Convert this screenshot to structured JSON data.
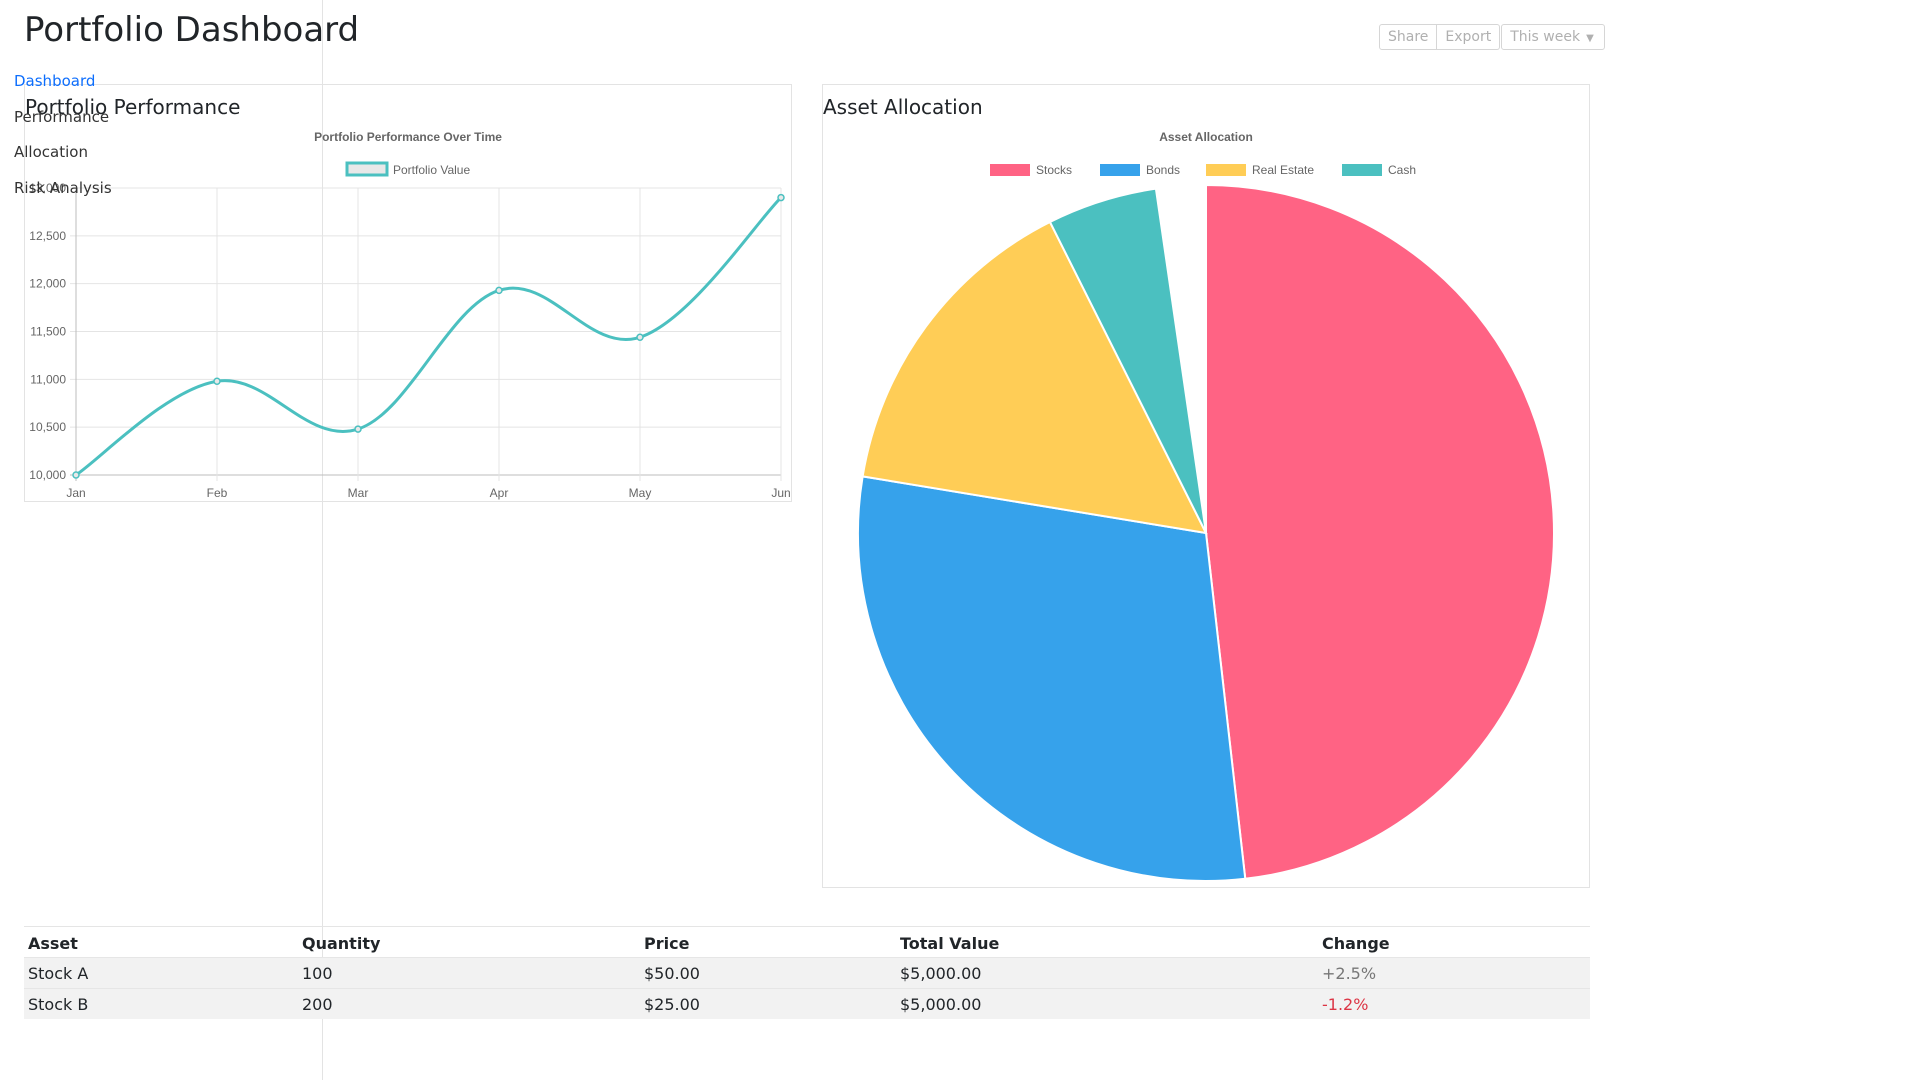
{
  "header": {
    "title": "Portfolio Dashboard",
    "share_label": "Share",
    "export_label": "Export",
    "period_label": "This week"
  },
  "sidebar": {
    "items": [
      {
        "label": "Dashboard",
        "active": true
      },
      {
        "label": "Performance"
      },
      {
        "label": "Allocation"
      },
      {
        "label": "Risk Analysis"
      }
    ]
  },
  "panels": {
    "performance_title": "Portfolio Performance",
    "allocation_title": "Asset Allocation"
  },
  "chart_data": [
    {
      "type": "line",
      "title": "Portfolio Performance Over Time",
      "categories": [
        "Jan",
        "Feb",
        "Mar",
        "Apr",
        "May",
        "Jun"
      ],
      "series": [
        {
          "name": "Portfolio Value",
          "values": [
            10000,
            10980,
            10480,
            11930,
            11440,
            12900
          ],
          "color": "#4bc0c0"
        }
      ],
      "ylim": [
        10000,
        13000
      ],
      "yticks": [
        "10,000",
        "10,500",
        "11,000",
        "11,500",
        "12,000",
        "12,500",
        "13,000"
      ],
      "grid": true,
      "legend": "top"
    },
    {
      "type": "pie",
      "title": "Asset Allocation",
      "labels": [
        "Stocks",
        "Bonds",
        "Real Estate",
        "Cash"
      ],
      "values": [
        48.2,
        29.4,
        15.0,
        5.1
      ],
      "colors": [
        "#ff6384",
        "#36a2eb",
        "#ffcd56",
        "#4bc0c0"
      ],
      "legend": "top"
    }
  ],
  "table": {
    "headers": [
      "Asset",
      "Quantity",
      "Price",
      "Total Value",
      "Change"
    ],
    "rows": [
      {
        "asset": "Stock A",
        "quantity": "100",
        "price": "$50.00",
        "total": "$5,000.00",
        "change": "+2.5%"
      },
      {
        "asset": "Stock B",
        "quantity": "200",
        "price": "$25.00",
        "total": "$5,000.00",
        "change": "-1.2%"
      }
    ]
  }
}
